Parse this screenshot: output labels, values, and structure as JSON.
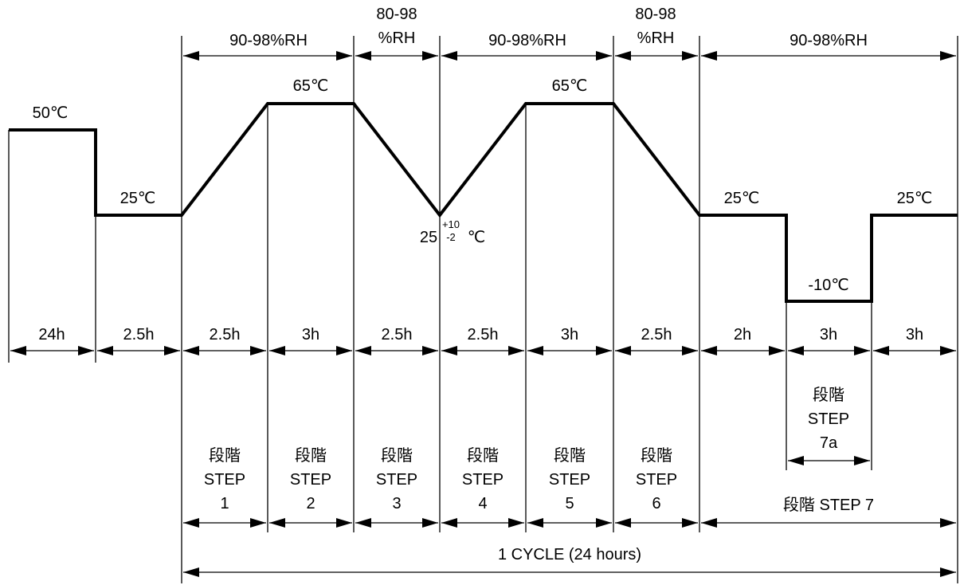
{
  "humidity": {
    "step1_2": "90-98%RH",
    "step3_a": "80-98",
    "step3_b": "%RH",
    "step4_5": "90-98%RH",
    "step6_a": "80-98",
    "step6_b": "%RH",
    "step7": "90-98%RH"
  },
  "temps": {
    "t50": "50℃",
    "t25_left": "25℃",
    "t65_a": "65℃",
    "t65_b": "65℃",
    "t25_min_base": "25",
    "t25_min_sup": "+10",
    "t25_min_sub": "-2",
    "t25_min_unit": "℃",
    "t25_right_a": "25℃",
    "t25_right_b": "25℃",
    "tminus10": "-10℃"
  },
  "durations": [
    "24h",
    "2.5h",
    "2.5h",
    "3h",
    "2.5h",
    "2.5h",
    "3h",
    "2.5h",
    "2h",
    "3h",
    "3h"
  ],
  "steps": {
    "kanji": "段階",
    "word": "STEP",
    "numbers": [
      "1",
      "2",
      "3",
      "4",
      "5",
      "6"
    ],
    "step7a_num": "7a",
    "step7_label": "段階 STEP 7"
  },
  "cycle_label": "1 CYCLE (24 hours)"
}
